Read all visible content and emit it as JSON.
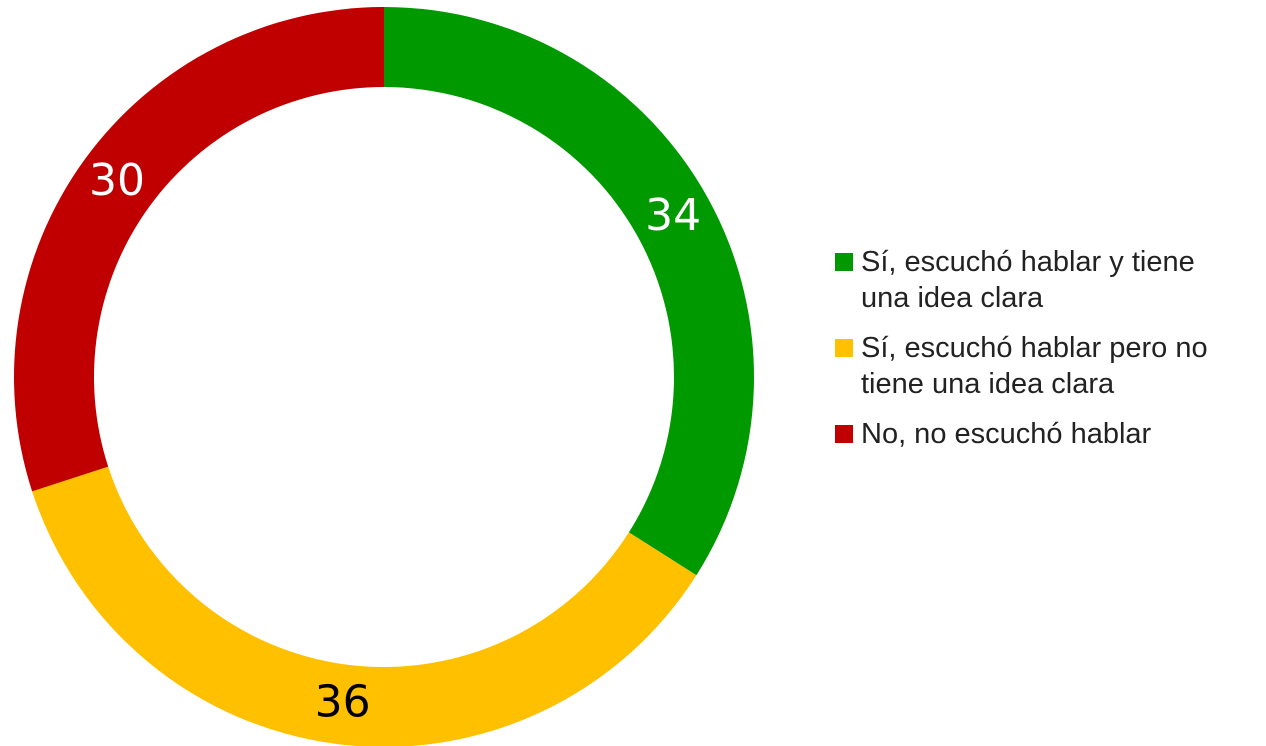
{
  "chart_data": {
    "type": "donut",
    "categories": [
      "Sí, escuchó hablar y tiene una idea clara",
      "Sí, escuchó hablar pero no tiene una idea clara",
      "No, no escuchó hablar"
    ],
    "values": [
      34,
      36,
      30
    ],
    "colors": [
      "#009900",
      "#ffc000",
      "#c00000"
    ],
    "label_colors": [
      "#ffffff",
      "#000000",
      "#ffffff"
    ],
    "legend": "right"
  }
}
